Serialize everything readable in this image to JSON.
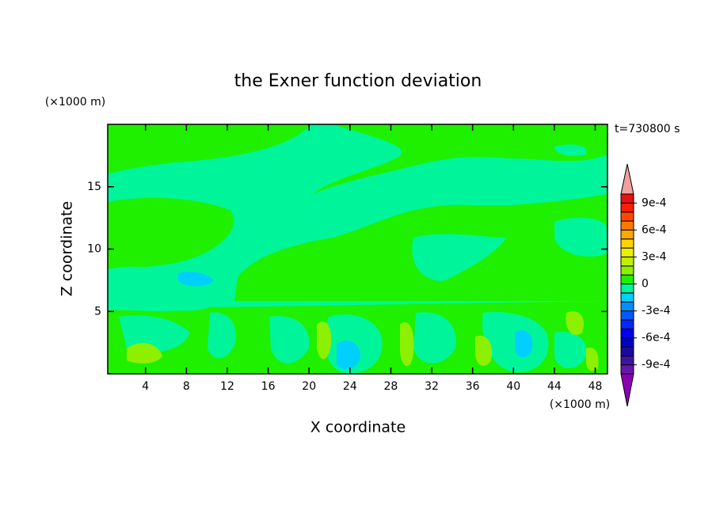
{
  "chart_data": {
    "type": "contour",
    "title": "the Exner function deviation",
    "xlabel": "X coordinate",
    "ylabel": "Z coordinate",
    "x_unit": "(×1000 m)",
    "y_unit": "(×1000 m)",
    "time_label": "t=730800 s",
    "xlim": [
      0.3,
      49.2
    ],
    "ylim": [
      0,
      20
    ],
    "xticks": [
      4,
      8,
      12,
      16,
      20,
      24,
      28,
      32,
      36,
      40,
      44,
      48
    ],
    "yticks": [
      5,
      10,
      15
    ],
    "colorbar": {
      "levels": [
        -0.001,
        -0.0009,
        -0.0008,
        -0.0007,
        -0.0006,
        -0.0005,
        -0.0004,
        -0.0003,
        -0.0002,
        -0.0001,
        0,
        0.0001,
        0.0002,
        0.0003,
        0.0004,
        0.0005,
        0.0006,
        0.0007,
        0.0008,
        0.0009,
        0.001
      ],
      "colors": [
        "#6418a8",
        "#3c14a0",
        "#1a0aa0",
        "#0000c8",
        "#0000ec",
        "#0028ff",
        "#0058ff",
        "#0090ff",
        "#00d0ff",
        "#00f59a",
        "#1ef000",
        "#8cf000",
        "#c0f000",
        "#e8f000",
        "#ffd200",
        "#ffa800",
        "#ff7800",
        "#ff4800",
        "#ff1e00",
        "#e81010"
      ],
      "under_color": "#8c00b4",
      "over_color": "#f0a0a0",
      "ticks": [
        {
          "value": 0.0009,
          "label": "9e-4"
        },
        {
          "value": 0.0006,
          "label": "6e-4"
        },
        {
          "value": 0.0003,
          "label": "3e-4"
        },
        0,
        {
          "value": -0.0003,
          "label": "-3e-4"
        },
        {
          "value": -0.0006,
          "label": "-6e-4"
        },
        {
          "value": -0.0009,
          "label": "-9e-4"
        }
      ]
    }
  }
}
